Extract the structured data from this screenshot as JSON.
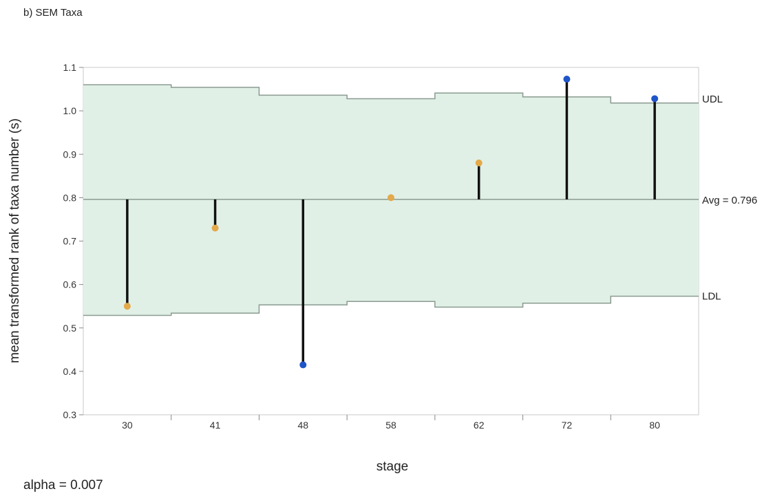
{
  "panel_label": "b) SEM Taxa",
  "alpha_label": "alpha = 0.007",
  "chart_data": {
    "type": "scatter",
    "subtype": "analysis-of-means",
    "title": "SEM Taxa",
    "xlabel": "stage",
    "ylabel": "mean transformed rank of taxa number (s)",
    "categories": [
      "30",
      "41",
      "48",
      "58",
      "62",
      "72",
      "80"
    ],
    "values": [
      0.55,
      0.73,
      0.415,
      0.8,
      0.88,
      1.073,
      1.028
    ],
    "point_status": [
      "within",
      "within",
      "outside",
      "within",
      "within",
      "outside",
      "outside"
    ],
    "avg": 0.796,
    "avg_label": "Avg = 0.796",
    "udl": [
      1.06,
      1.054,
      1.036,
      1.028,
      1.041,
      1.032,
      1.018
    ],
    "ldl": [
      0.529,
      0.534,
      0.553,
      0.561,
      0.548,
      0.557,
      0.573
    ],
    "udl_label": "UDL",
    "ldl_label": "LDL",
    "ylim": [
      0.3,
      1.1
    ],
    "yticks": [
      "0.3",
      "0.4",
      "0.5",
      "0.6",
      "0.7",
      "0.8",
      "0.9",
      "1.0",
      "1.1"
    ],
    "grid": false,
    "colors": {
      "band_fill": "#e0f0e7",
      "limit_line": "#8a9a90",
      "within_point": "#e3a94a",
      "outside_point": "#1f55c8",
      "needle": "#111111",
      "frame": "#c8c8c8"
    }
  }
}
